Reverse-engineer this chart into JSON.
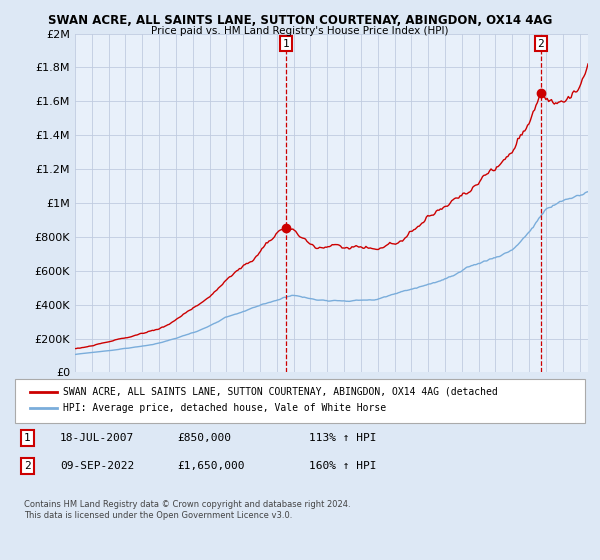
{
  "title1": "SWAN ACRE, ALL SAINTS LANE, SUTTON COURTENAY, ABINGDON, OX14 4AG",
  "title2": "Price paid vs. HM Land Registry's House Price Index (HPI)",
  "ylim": [
    0,
    2000000
  ],
  "yticks": [
    0,
    200000,
    400000,
    600000,
    800000,
    1000000,
    1200000,
    1400000,
    1600000,
    1800000,
    2000000
  ],
  "ytick_labels": [
    "£0",
    "£200K",
    "£400K",
    "£600K",
    "£800K",
    "£1M",
    "£1.2M",
    "£1.4M",
    "£1.6M",
    "£1.8M",
    "£2M"
  ],
  "hpi_color": "#7aaddb",
  "price_color": "#cc0000",
  "sale1_x": 2007.54,
  "sale1_price": 850000,
  "sale1_pct": "113%",
  "sale1_date": "18-JUL-2007",
  "sale2_x": 2022.69,
  "sale2_price": 1650000,
  "sale2_pct": "160%",
  "sale2_date": "09-SEP-2022",
  "legend_line1": "SWAN ACRE, ALL SAINTS LANE, SUTTON COURTENAY, ABINGDON, OX14 4AG (detached",
  "legend_line2": "HPI: Average price, detached house, Vale of White Horse",
  "footnote1": "Contains HM Land Registry data © Crown copyright and database right 2024.",
  "footnote2": "This data is licensed under the Open Government Licence v3.0.",
  "bg_color": "#dde8f5",
  "plot_bg": "#e8f0fa",
  "grid_color": "#c0cce0"
}
